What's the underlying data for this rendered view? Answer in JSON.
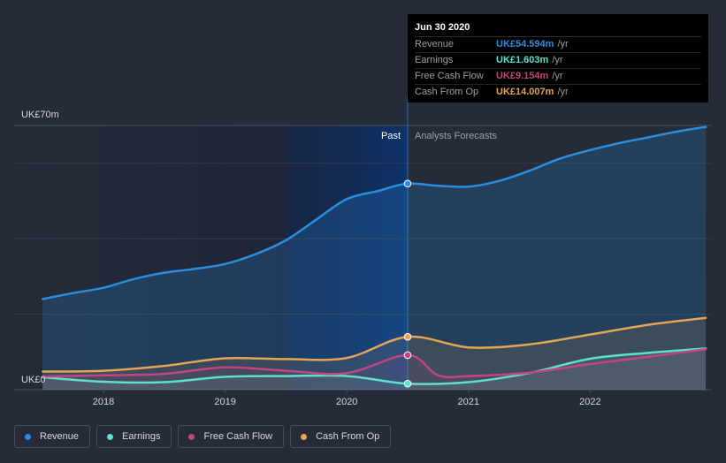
{
  "chart_data": {
    "type": "area",
    "title": "",
    "y_top_label": "UK£70m",
    "y_bottom_label": "UK£0",
    "ylim": [
      0,
      70
    ],
    "x_range": [
      2017.5,
      2022.95
    ],
    "divider_x": 2020.5,
    "past_label": "Past",
    "forecast_label": "Analysts Forecasts",
    "x_ticks": [
      {
        "value": 2018,
        "label": "2018"
      },
      {
        "value": 2019,
        "label": "2019"
      },
      {
        "value": 2020,
        "label": "2020"
      },
      {
        "value": 2021,
        "label": "2021"
      },
      {
        "value": 2022,
        "label": "2022"
      }
    ],
    "series": [
      {
        "key": "revenue",
        "name": "Revenue",
        "color": "#2a8ee0",
        "x": [
          2017.5,
          2017.75,
          2018.0,
          2018.25,
          2018.5,
          2018.75,
          2019.0,
          2019.25,
          2019.5,
          2019.75,
          2020.0,
          2020.25,
          2020.5,
          2020.75,
          2021.0,
          2021.25,
          2021.5,
          2021.75,
          2022.0,
          2022.25,
          2022.5,
          2022.75,
          2022.95
        ],
        "values": [
          24.0,
          25.6,
          27.0,
          29.3,
          31.0,
          32.0,
          33.3,
          35.9,
          39.6,
          45.1,
          50.5,
          52.6,
          54.6,
          54.0,
          53.8,
          55.3,
          58.0,
          61.2,
          63.5,
          65.4,
          67.0,
          68.6,
          69.6
        ]
      },
      {
        "key": "earnings",
        "name": "Earnings",
        "color": "#5ee0c9",
        "x": [
          2017.5,
          2018.0,
          2018.5,
          2019.0,
          2019.5,
          2020.0,
          2020.5,
          2021.0,
          2021.5,
          2022.0,
          2022.5,
          2022.95
        ],
        "values": [
          3.3,
          2.1,
          2.0,
          3.4,
          3.6,
          3.6,
          1.603,
          2.0,
          4.4,
          8.2,
          9.8,
          10.9
        ]
      },
      {
        "key": "fcf",
        "name": "Free Cash Flow",
        "color": "#c2457f",
        "x": [
          2017.5,
          2018.0,
          2018.5,
          2019.0,
          2019.5,
          2020.0,
          2020.5,
          2020.75,
          2021.0,
          2021.5,
          2022.0,
          2022.5,
          2022.95
        ],
        "values": [
          3.5,
          3.8,
          4.2,
          5.9,
          5.0,
          4.4,
          9.154,
          3.8,
          3.6,
          4.5,
          6.8,
          8.8,
          10.7
        ]
      },
      {
        "key": "cfo",
        "name": "Cash From Op",
        "color": "#e4a555",
        "x": [
          2017.5,
          2018.0,
          2018.5,
          2019.0,
          2019.5,
          2020.0,
          2020.5,
          2021.0,
          2021.5,
          2022.0,
          2022.5,
          2022.95
        ],
        "values": [
          4.8,
          5.0,
          6.3,
          8.3,
          8.1,
          8.4,
          14.007,
          11.2,
          12.0,
          14.6,
          17.3,
          19.0
        ]
      }
    ],
    "markers_at": 2020.5
  },
  "tooltip": {
    "date": "Jun 30 2020",
    "rows": [
      {
        "label": "Revenue",
        "value": "UK£54.594m",
        "unit": "/yr",
        "color": "#2a8ee0"
      },
      {
        "label": "Earnings",
        "value": "UK£1.603m",
        "unit": "/yr",
        "color": "#5ee0c9"
      },
      {
        "label": "Free Cash Flow",
        "value": "UK£9.154m",
        "unit": "/yr",
        "color": "#c2457f"
      },
      {
        "label": "Cash From Op",
        "value": "UK£14.007m",
        "unit": "/yr",
        "color": "#e4a555"
      }
    ]
  },
  "legend": [
    {
      "label": "Revenue",
      "color": "#2a8ee0"
    },
    {
      "label": "Earnings",
      "color": "#5ee0c9"
    },
    {
      "label": "Free Cash Flow",
      "color": "#c2457f"
    },
    {
      "label": "Cash From Op",
      "color": "#e4a555"
    }
  ]
}
